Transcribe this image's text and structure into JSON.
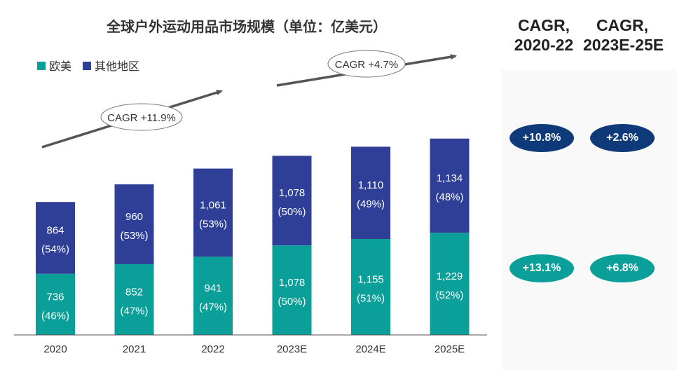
{
  "colors": {
    "europe_us": "#0aa099",
    "other": "#2f3f98",
    "dark_pill": "#0e3a7a",
    "teal_pill": "#0aa099",
    "axis": "#555555"
  },
  "chart_data": {
    "type": "bar",
    "stacked": true,
    "title": "全球户外运动用品市场规模（单位：亿美元）",
    "categories": [
      "2020",
      "2021",
      "2022",
      "2023E",
      "2024E",
      "2025E"
    ],
    "series": [
      {
        "name": "欧美",
        "values": [
          736,
          852,
          941,
          1078,
          1155,
          1229
        ],
        "shares": [
          "(46%)",
          "(47%)",
          "(47%)",
          "(50%)",
          "(51%)",
          "(52%)"
        ],
        "value_labels": [
          "736",
          "852",
          "941",
          "1,078",
          "1,155",
          "1,229"
        ]
      },
      {
        "name": "其他地区",
        "values": [
          864,
          960,
          1061,
          1078,
          1110,
          1134
        ],
        "shares": [
          "(54%)",
          "(53%)",
          "(53%)",
          "(50%)",
          "(49%)",
          "(48%)"
        ],
        "value_labels": [
          "864",
          "960",
          "1,061",
          "1,078",
          "1,110",
          "1,134"
        ]
      }
    ],
    "annotations": [
      {
        "text": "CAGR +11.9%",
        "from_category": "2020",
        "to_category": "2022"
      },
      {
        "text": "CAGR +4.7%",
        "from_category": "2023E",
        "to_category": "2025E"
      }
    ],
    "legend_position": "top-left",
    "ylim": [
      0,
      2500
    ],
    "grid": false
  },
  "cagr_table": {
    "headers": [
      {
        "line1": "CAGR,",
        "line2": "2020-22"
      },
      {
        "line1": "CAGR,",
        "line2": "2023E-25E"
      }
    ],
    "rows": [
      {
        "series": "其他地区",
        "values": [
          "+10.8%",
          "+2.6%"
        ]
      },
      {
        "series": "欧美",
        "values": [
          "+13.1%",
          "+6.8%"
        ]
      }
    ]
  }
}
